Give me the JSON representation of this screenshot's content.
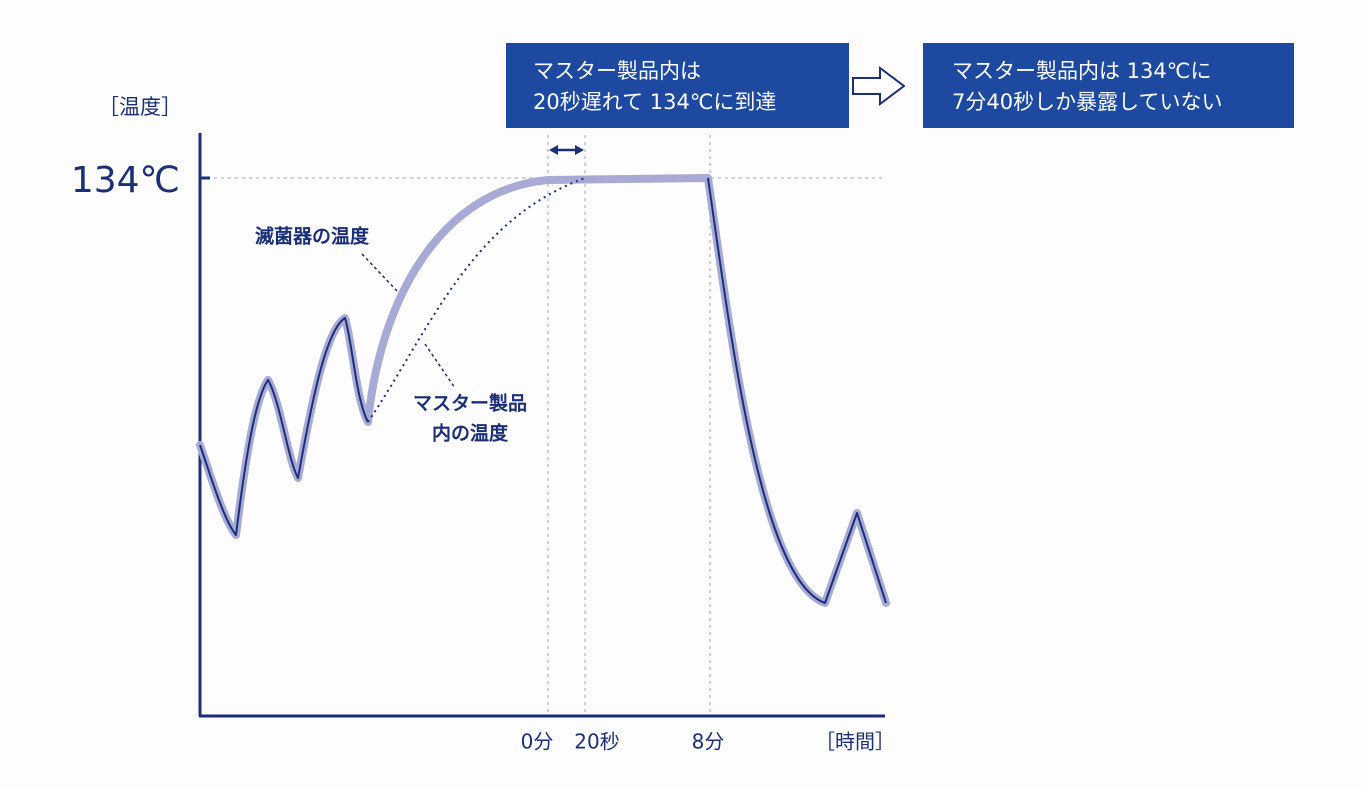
{
  "y_axis": {
    "label": "［温度］",
    "tick": "134℃"
  },
  "x_axis": {
    "label": "［時間］",
    "ticks": [
      "0分",
      "20秒",
      "8分"
    ]
  },
  "curves": [
    {
      "lines": [
        "滅菌器の温度"
      ]
    },
    {
      "lines": [
        "マスター製品",
        "内の温度"
      ]
    }
  ],
  "callouts": [
    {
      "lines": [
        "マスター製品内は",
        "20秒遅れて 134℃に到達"
      ]
    },
    {
      "lines": [
        "マスター製品内は 134℃に",
        "7分40秒しか暴露していない"
      ]
    }
  ]
}
